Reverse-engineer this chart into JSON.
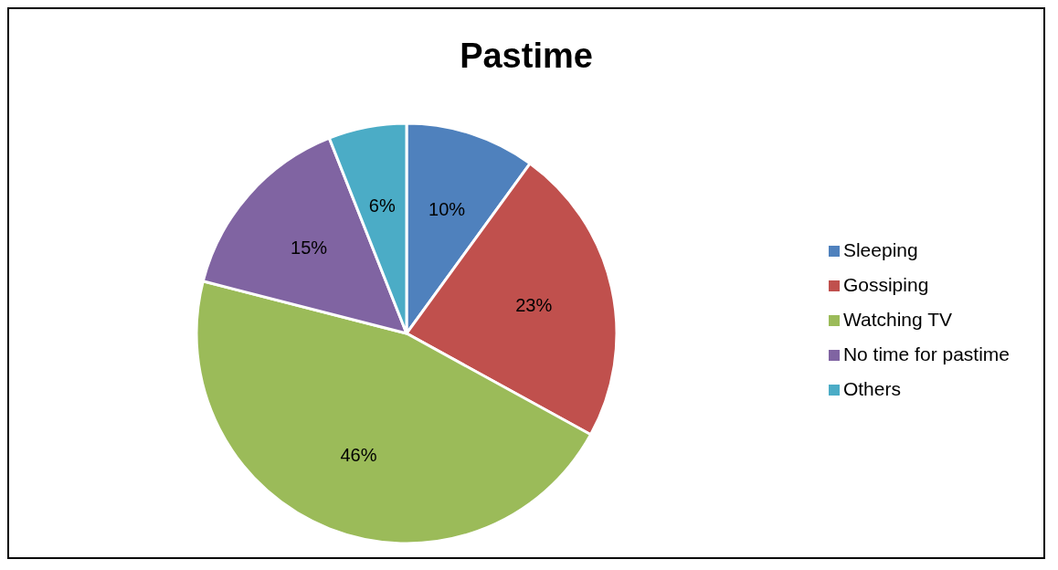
{
  "chart_data": {
    "type": "pie",
    "title": "Pastime",
    "categories": [
      "Sleeping",
      "Gossiping",
      "Watching TV",
      "No time for pastime",
      "Others"
    ],
    "values": [
      10,
      23,
      46,
      15,
      6
    ],
    "colors": [
      "#4f81bd",
      "#c0504d",
      "#9bbb59",
      "#8064a2",
      "#4bacc6"
    ],
    "value_labels": [
      "10%",
      "23%",
      "46%",
      "15%",
      "6%"
    ],
    "legend": "right"
  }
}
